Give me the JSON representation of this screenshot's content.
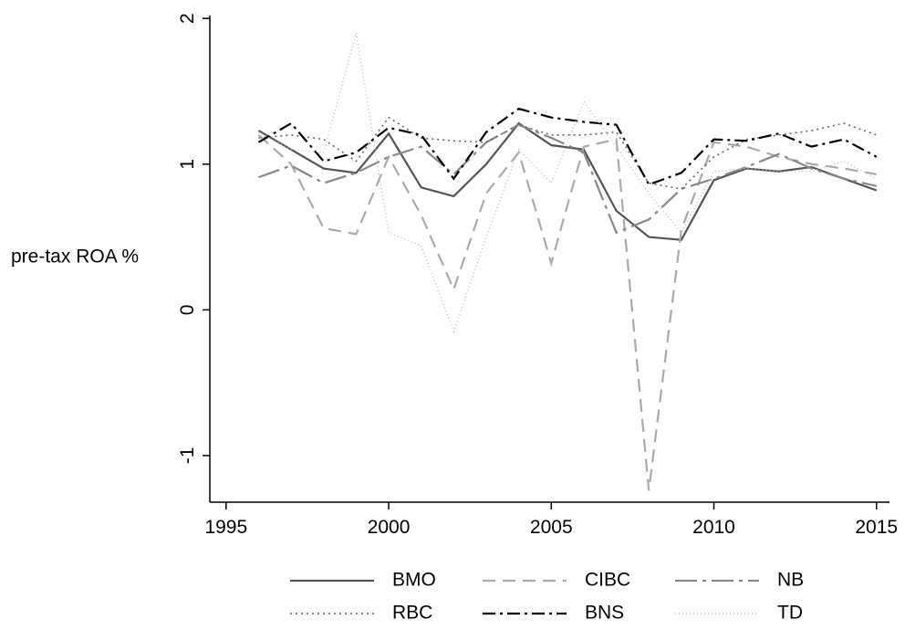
{
  "chart_data": {
    "type": "line",
    "y_label": "pre-tax ROA %",
    "x": [
      1996,
      1997,
      1998,
      1999,
      2000,
      2001,
      2002,
      2003,
      2004,
      2005,
      2006,
      2007,
      2008,
      2009,
      2010,
      2011,
      2012,
      2013,
      2014,
      2015
    ],
    "series": [
      {
        "name": "BMO",
        "color": "#555555",
        "values": [
          1.23,
          1.1,
          0.97,
          0.94,
          1.21,
          0.84,
          0.78,
          1.0,
          1.28,
          1.13,
          1.1,
          0.68,
          0.5,
          0.48,
          0.89,
          0.97,
          0.95,
          0.98,
          0.9,
          0.82
        ]
      },
      {
        "name": "CIBC",
        "color": "#aaaaaa",
        "values": [
          1.2,
          1.0,
          0.56,
          0.52,
          1.05,
          0.65,
          0.14,
          0.8,
          1.08,
          0.32,
          1.12,
          1.17,
          -1.24,
          0.55,
          1.15,
          1.12,
          1.05,
          1.0,
          0.97,
          0.93
        ]
      },
      {
        "name": "NB",
        "color": "#888888",
        "values": [
          0.91,
          0.99,
          0.87,
          0.94,
          1.05,
          1.12,
          0.93,
          1.15,
          1.27,
          1.18,
          1.08,
          0.53,
          0.62,
          0.83,
          0.9,
          0.98,
          1.07,
          0.97,
          0.9,
          0.85
        ]
      },
      {
        "name": "RBC",
        "color": "#666666",
        "values": [
          1.18,
          1.2,
          1.17,
          1.02,
          1.32,
          1.18,
          1.16,
          1.15,
          1.27,
          1.2,
          1.2,
          1.22,
          0.87,
          0.83,
          1.05,
          1.17,
          1.2,
          1.23,
          1.28,
          1.2
        ]
      },
      {
        "name": "BNS",
        "color": "#000000",
        "values": [
          1.15,
          1.28,
          1.02,
          1.08,
          1.25,
          1.2,
          0.9,
          1.22,
          1.38,
          1.32,
          1.29,
          1.27,
          0.86,
          0.94,
          1.17,
          1.16,
          1.21,
          1.12,
          1.17,
          1.05
        ]
      },
      {
        "name": "TD",
        "color": "#bbbbbb",
        "values": [
          1.22,
          1.1,
          1.08,
          1.9,
          0.53,
          0.44,
          -0.15,
          0.5,
          1.1,
          0.87,
          1.43,
          1.12,
          0.8,
          0.53,
          0.95,
          0.97,
          0.95,
          0.95,
          1.02,
          0.9
        ]
      }
    ],
    "xlim": [
      1994.5,
      2015.4
    ],
    "xticks": [
      1995,
      2000,
      2005,
      2010,
      2015
    ],
    "ylim": [
      -1.32,
      2.02
    ],
    "yticks": [
      -1,
      0,
      1,
      2
    ],
    "grid": false
  }
}
